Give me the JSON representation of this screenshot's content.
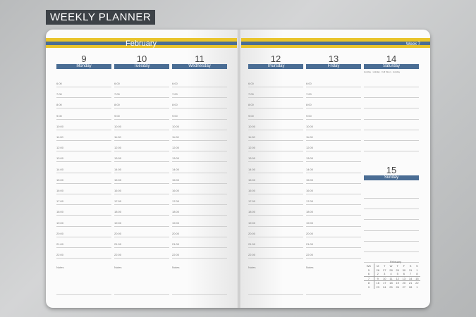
{
  "title": "WEEKLY PLANNER",
  "month": "February",
  "week": "Week 7",
  "days": [
    {
      "num": "9",
      "name": "Monday"
    },
    {
      "num": "10",
      "name": "Tuesday"
    },
    {
      "num": "11",
      "name": "Wednesday"
    },
    {
      "num": "12",
      "name": "Thursday"
    },
    {
      "num": "13",
      "name": "Friday"
    },
    {
      "num": "14",
      "name": "Saturday"
    },
    {
      "num": "15",
      "name": "Sunday"
    }
  ],
  "hours": [
    "6:00",
    "7:00",
    "8:00",
    "9:00",
    "10:00",
    "11:00",
    "12:00",
    "13:00",
    "14:00",
    "15:00",
    "16:00",
    "17:00",
    "18:00",
    "19:00",
    "20:00",
    "21:00",
    "22:00"
  ],
  "notes_label": "Notes",
  "saturday_legend": "Holiday · Holiday · Full Moon · Holiday",
  "mini_calendar": {
    "title": "February",
    "headers": [
      "WK",
      "M",
      "T",
      "W",
      "T",
      "F",
      "S",
      "S"
    ],
    "rows": [
      [
        "5",
        "26",
        "27",
        "28",
        "29",
        "30",
        "31",
        "1"
      ],
      [
        "6",
        "2",
        "3",
        "4",
        "5",
        "6",
        "7",
        "8"
      ],
      [
        "7",
        "9",
        "10",
        "11",
        "12",
        "13",
        "14",
        "15"
      ],
      [
        "8",
        "16",
        "17",
        "18",
        "19",
        "20",
        "21",
        "22"
      ],
      [
        "9",
        "23",
        "24",
        "25",
        "26",
        "27",
        "28",
        "1"
      ]
    ]
  },
  "colors": {
    "blue": "#4a6d94",
    "yellow": "#e9c42b",
    "title_bg": "#3d4247"
  }
}
